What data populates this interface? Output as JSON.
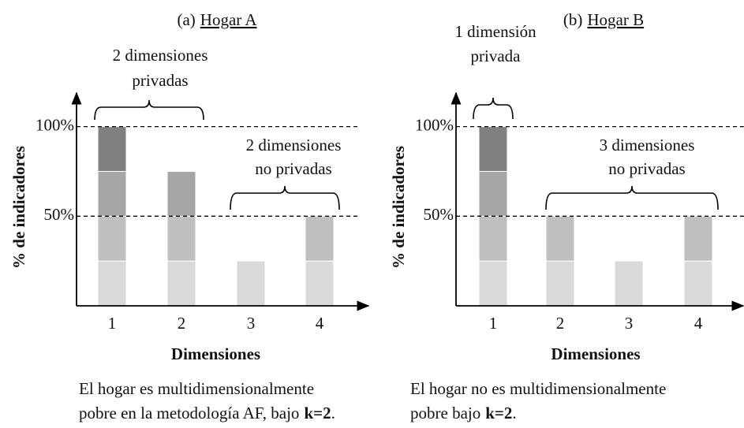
{
  "chart_data": [
    {
      "type": "bar",
      "stacked": true,
      "panel": "(a)",
      "title": "Hogar A",
      "xlabel": "Dimensiones",
      "ylabel": "% de indicadores",
      "categories": [
        "1",
        "2",
        "3",
        "4"
      ],
      "series": [
        {
          "color": "#d9d9d9",
          "values": [
            25,
            25,
            25,
            25
          ]
        },
        {
          "color": "#bfbfbf",
          "values": [
            25,
            25,
            null,
            25
          ]
        },
        {
          "color": "#a6a6a6",
          "values": [
            25,
            25,
            null,
            null
          ]
        },
        {
          "color": "#808080",
          "values": [
            25,
            null,
            null,
            null
          ]
        }
      ],
      "ylim": [
        0,
        117
      ],
      "yticks": [
        {
          "value": 50,
          "label": "50%"
        },
        {
          "value": 100,
          "label": "100%"
        }
      ],
      "grid": true,
      "annotations": [
        {
          "lines": [
            "2 dimensiones",
            "privadas"
          ]
        },
        {
          "lines": [
            "2 dimensiones",
            "no privadas"
          ]
        }
      ],
      "caption": {
        "line1": "El hogar es multidimensionalmente",
        "line2": "pobre en la metodología AF, bajo",
        "bold": "k=2",
        "end": "."
      }
    },
    {
      "type": "bar",
      "stacked": true,
      "panel": "(b)",
      "title": "Hogar B",
      "xlabel": "Dimensiones",
      "ylabel": "% de indicadores",
      "categories": [
        "1",
        "2",
        "3",
        "4"
      ],
      "series": [
        {
          "color": "#d9d9d9",
          "values": [
            25,
            25,
            25,
            25
          ]
        },
        {
          "color": "#bfbfbf",
          "values": [
            25,
            25,
            null,
            25
          ]
        },
        {
          "color": "#a6a6a6",
          "values": [
            25,
            null,
            null,
            null
          ]
        },
        {
          "color": "#808080",
          "values": [
            25,
            null,
            null,
            null
          ]
        }
      ],
      "ylim": [
        0,
        117
      ],
      "yticks": [
        {
          "value": 50,
          "label": "50%"
        },
        {
          "value": 100,
          "label": "100%"
        }
      ],
      "grid": true,
      "annotations": [
        {
          "lines": [
            "1 dimensión",
            "privada"
          ]
        },
        {
          "lines": [
            "3 dimensiones",
            "no privadas"
          ]
        }
      ],
      "caption": {
        "line1": "El hogar no es multidimensionalmente",
        "line2": "pobre bajo",
        "bold": "k=2",
        "end": "."
      }
    }
  ]
}
